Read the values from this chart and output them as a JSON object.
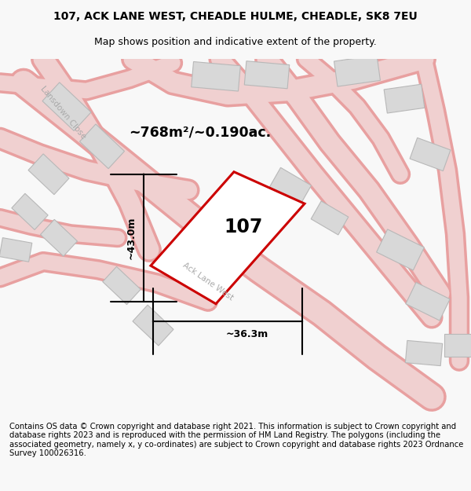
{
  "title_line1": "107, ACK LANE WEST, CHEADLE HULME, CHEADLE, SK8 7EU",
  "title_line2": "Map shows position and indicative extent of the property.",
  "footer_text": "Contains OS data © Crown copyright and database right 2021. This information is subject to Crown copyright and database rights 2023 and is reproduced with the permission of HM Land Registry. The polygons (including the associated geometry, namely x, y co-ordinates) are subject to Crown copyright and database rights 2023 Ordnance Survey 100026316.",
  "area_label": "~768m²/~0.190ac.",
  "property_label": "107",
  "dim_height": "~43.0m",
  "dim_width": "~36.3m",
  "street_label1": "Lansdown Close",
  "street_label2": "Ack Lane West",
  "bg_color": "#f8f8f8",
  "map_bg": "#ffffff",
  "road_fill": "#f0d0d0",
  "road_stroke": "#e8a0a0",
  "building_fill": "#d8d8d8",
  "building_stroke": "#b8b8b8",
  "property_stroke": "#cc0000",
  "property_fill": "#ffffff"
}
